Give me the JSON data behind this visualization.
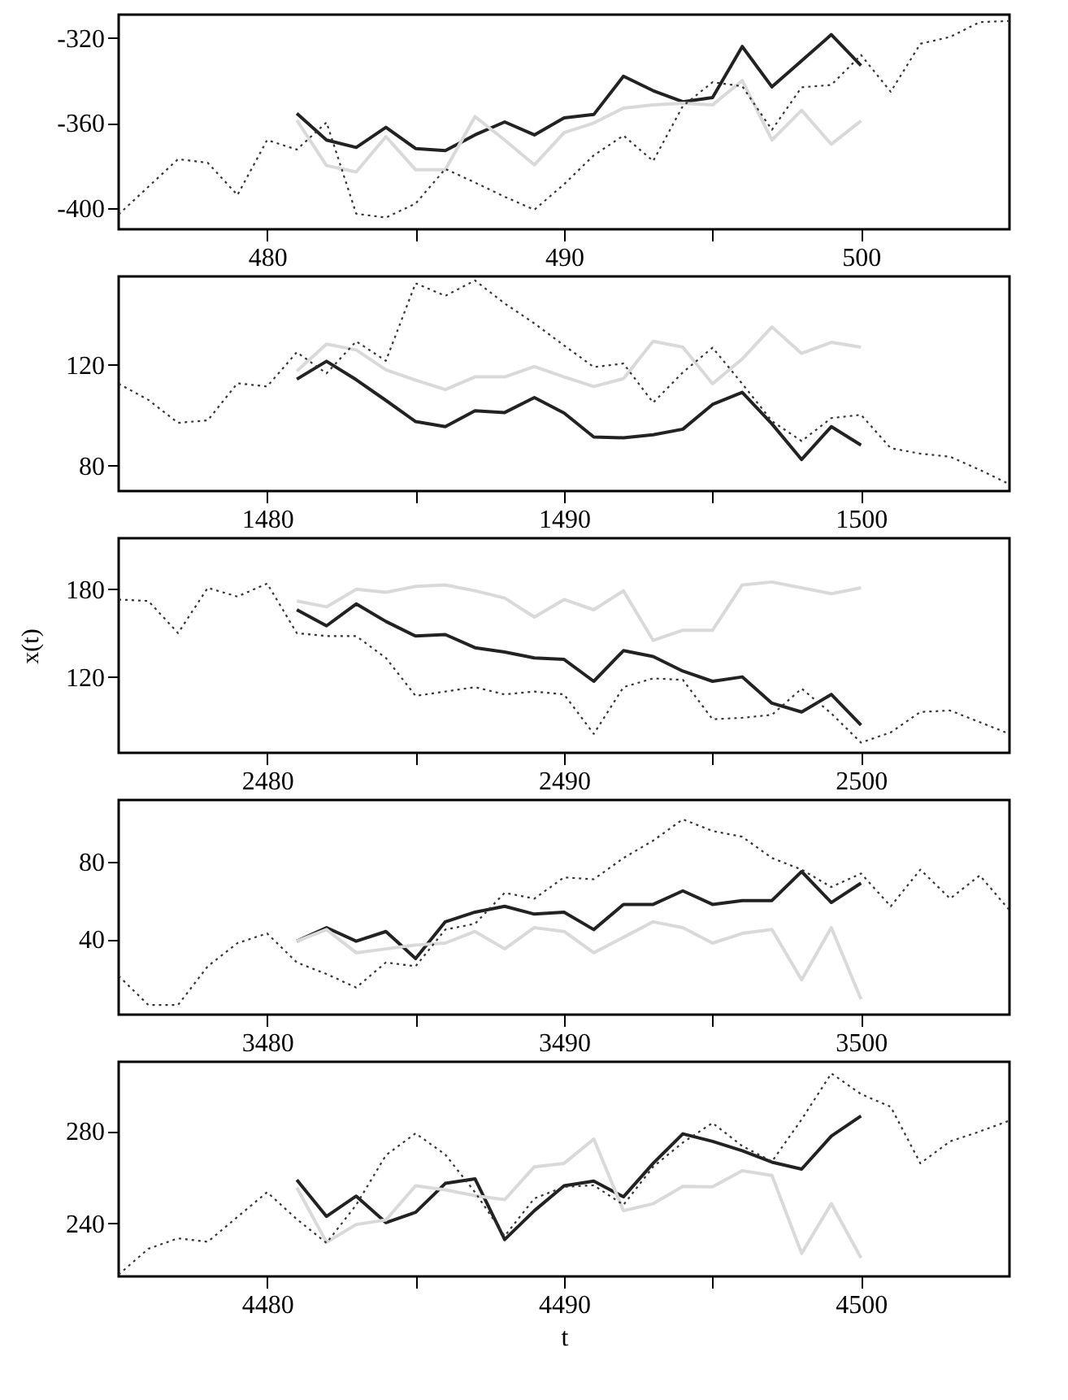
{
  "chart_data": [
    {
      "type": "line",
      "xlim": [
        475,
        505
      ],
      "xticks": [
        480,
        {
          "value": 485,
          "label": null
        },
        490,
        {
          "value": 495,
          "label": null
        },
        500
      ],
      "ylim": [
        -410,
        -309
      ],
      "yticks": [
        -400,
        -360,
        -320
      ],
      "series": [
        {
          "color": "#222222",
          "line_style": "solid",
          "x": [
            481,
            482,
            483,
            484,
            485,
            486,
            487,
            488,
            489,
            490,
            491,
            492,
            493,
            494,
            495,
            496,
            497,
            498,
            499,
            500
          ],
          "values": [
            -355.5,
            -368,
            -371.5,
            -362,
            -372,
            -373,
            -365.6,
            -359.5,
            -365.6,
            -357.6,
            -356,
            -338,
            -344.8,
            -350,
            -348,
            -324,
            -343,
            -330.7,
            -318.4,
            -333
          ]
        },
        {
          "color": "#d9d9d9",
          "line_style": "solid",
          "x": [
            481,
            482,
            483,
            484,
            485,
            486,
            487,
            488,
            489,
            490,
            491,
            492,
            493,
            494,
            495,
            496,
            497,
            498,
            499,
            500
          ],
          "values": [
            -358.7,
            -380,
            -383,
            -366.4,
            -382,
            -382,
            -357,
            -368,
            -379.7,
            -364.5,
            -360,
            -353,
            -351.5,
            -350.7,
            -351.5,
            -340,
            -368,
            -354,
            -370,
            -359
          ]
        },
        {
          "color": "#333333",
          "line_style": "dotted",
          "x": [
            475,
            476,
            477,
            478,
            479,
            480,
            481,
            482,
            483,
            484,
            485,
            486,
            487,
            488,
            489,
            490,
            491,
            492,
            493,
            494,
            495,
            496,
            497,
            498,
            499,
            500,
            501,
            502,
            503,
            504,
            505
          ],
          "values": [
            -403,
            -390,
            -377,
            -378.7,
            -393.9,
            -368,
            -372.5,
            -359.7,
            -402.7,
            -404.5,
            -397.9,
            -381.6,
            -388,
            -394.7,
            -400.8,
            -388.8,
            -375.2,
            -365.9,
            -377.9,
            -352,
            -340.8,
            -342.7,
            -363.2,
            -343.2,
            -342.1,
            -328,
            -345.3,
            -322.7,
            -319.5,
            -312.5,
            -312
          ]
        }
      ]
    },
    {
      "type": "line",
      "xlim": [
        1475,
        1505
      ],
      "xticks": [
        1480,
        {
          "value": 1485,
          "label": null
        },
        1490,
        {
          "value": 1495,
          "label": null
        },
        1500
      ],
      "ylim": [
        70,
        155
      ],
      "yticks": [
        80,
        120
      ],
      "series": [
        {
          "color": "#222222",
          "line_style": "solid",
          "x": [
            1481,
            1482,
            1483,
            1484,
            1485,
            1486,
            1487,
            1488,
            1489,
            1490,
            1491,
            1492,
            1493,
            1494,
            1495,
            1496,
            1497,
            1498,
            1499,
            1500
          ],
          "values": [
            114.3,
            121.4,
            114.1,
            105.9,
            97.5,
            95.5,
            101.8,
            101.1,
            107,
            100.9,
            91.4,
            91.1,
            92.3,
            94.5,
            104.3,
            109.1,
            96.6,
            82.5,
            95.5,
            88.2
          ]
        },
        {
          "color": "#d9d9d9",
          "line_style": "solid",
          "x": [
            1481,
            1482,
            1483,
            1484,
            1485,
            1486,
            1487,
            1488,
            1489,
            1490,
            1491,
            1492,
            1493,
            1494,
            1495,
            1496,
            1497,
            1498,
            1499,
            1500
          ],
          "values": [
            117.5,
            128.2,
            125.9,
            118,
            113.9,
            110.2,
            115.2,
            115.2,
            119.3,
            115.2,
            111.4,
            114.5,
            129.3,
            127,
            112.5,
            122.3,
            135,
            124.5,
            128.9,
            127
          ]
        },
        {
          "color": "#333333",
          "line_style": "dotted",
          "x": [
            1475,
            1476,
            1477,
            1478,
            1479,
            1480,
            1481,
            1482,
            1483,
            1484,
            1485,
            1486,
            1487,
            1488,
            1489,
            1490,
            1491,
            1492,
            1493,
            1494,
            1495,
            1496,
            1497,
            1498,
            1499,
            1500,
            1501,
            1502,
            1503,
            1504,
            1505
          ],
          "values": [
            112.5,
            106.1,
            97,
            98,
            112.7,
            111.4,
            125,
            116.6,
            129.3,
            121.6,
            152.3,
            147.3,
            153.4,
            144.3,
            136.4,
            127.7,
            119.1,
            120.5,
            105,
            117,
            126.8,
            112.5,
            97.7,
            89.8,
            98.9,
            100.2,
            87,
            84.8,
            83.6,
            78.4,
            72.7
          ]
        }
      ]
    },
    {
      "type": "line",
      "ylabel": "x(t)",
      "xlim": [
        2475,
        2505
      ],
      "xticks": [
        2480,
        {
          "value": 2485,
          "label": null
        },
        2490,
        {
          "value": 2495,
          "label": null
        },
        2500
      ],
      "ylim": [
        68,
        215
      ],
      "yticks": [
        120,
        180
      ],
      "series": [
        {
          "color": "#222222",
          "line_style": "solid",
          "x": [
            2481,
            2482,
            2483,
            2484,
            2485,
            2486,
            2487,
            2488,
            2489,
            2490,
            2491,
            2492,
            2493,
            2494,
            2495,
            2496,
            2497,
            2498,
            2499,
            2500
          ],
          "values": [
            166,
            155,
            170,
            158,
            148,
            149,
            140,
            137,
            133,
            132,
            117,
            138,
            134,
            124,
            117,
            120,
            102,
            96,
            108,
            87
          ]
        },
        {
          "color": "#d9d9d9",
          "line_style": "solid",
          "x": [
            2481,
            2482,
            2483,
            2484,
            2485,
            2486,
            2487,
            2488,
            2489,
            2490,
            2491,
            2492,
            2493,
            2494,
            2495,
            2496,
            2497,
            2498,
            2499,
            2500
          ],
          "values": [
            172,
            168,
            180,
            178,
            182,
            183,
            179,
            174,
            161,
            173,
            166,
            179,
            145,
            152,
            152,
            183,
            185,
            181,
            177,
            181
          ]
        },
        {
          "color": "#333333",
          "line_style": "dotted",
          "x": [
            2475,
            2476,
            2477,
            2478,
            2479,
            2480,
            2481,
            2482,
            2483,
            2484,
            2485,
            2486,
            2487,
            2488,
            2489,
            2490,
            2491,
            2492,
            2493,
            2494,
            2495,
            2496,
            2497,
            2498,
            2499,
            2500,
            2501,
            2502,
            2503,
            2504,
            2505
          ],
          "values": [
            173,
            172,
            150,
            181,
            175,
            184,
            150,
            148,
            148,
            133,
            107,
            110,
            113,
            108,
            110,
            108,
            81,
            113,
            119,
            118,
            91,
            92,
            94,
            112,
            95,
            75,
            82,
            96,
            97,
            89,
            81
          ]
        }
      ]
    },
    {
      "type": "line",
      "xlim": [
        3475,
        3505
      ],
      "xticks": [
        3480,
        {
          "value": 3485,
          "label": null
        },
        3490,
        {
          "value": 3495,
          "label": null
        },
        3500
      ],
      "ylim": [
        1,
        112
      ],
      "yticks": [
        40,
        80
      ],
      "series": [
        {
          "color": "#222222",
          "line_style": "solid",
          "x": [
            3481,
            3482,
            3483,
            3484,
            3485,
            3486,
            3487,
            3488,
            3489,
            3490,
            3491,
            3492,
            3493,
            3494,
            3495,
            3496,
            3497,
            3498,
            3499,
            3500
          ],
          "values": [
            39,
            46,
            39,
            44,
            30,
            49,
            54,
            57,
            53,
            54,
            45,
            58,
            58,
            65,
            58,
            60,
            60,
            75,
            59,
            69
          ]
        },
        {
          "color": "#d9d9d9",
          "line_style": "solid",
          "x": [
            3481,
            3482,
            3483,
            3484,
            3485,
            3486,
            3487,
            3488,
            3489,
            3490,
            3491,
            3492,
            3493,
            3494,
            3495,
            3496,
            3497,
            3498,
            3499,
            3500
          ],
          "values": [
            39,
            45,
            33,
            35,
            37,
            38,
            44,
            35,
            46,
            44,
            33,
            41,
            49,
            46,
            38,
            43,
            45,
            19,
            46,
            9
          ]
        },
        {
          "color": "#333333",
          "line_style": "dotted",
          "x": [
            3475,
            3476,
            3477,
            3478,
            3479,
            3480,
            3481,
            3482,
            3483,
            3484,
            3485,
            3486,
            3487,
            3488,
            3489,
            3490,
            3491,
            3492,
            3493,
            3494,
            3495,
            3496,
            3497,
            3498,
            3499,
            3500,
            3501,
            3502,
            3503,
            3504,
            3505
          ],
          "values": [
            21,
            6,
            6,
            26,
            38,
            43,
            28,
            22,
            15,
            28,
            26,
            45,
            48,
            64,
            61,
            72,
            71,
            82,
            91,
            102,
            96,
            93,
            82,
            76,
            67,
            74,
            57,
            76,
            61,
            73,
            55
          ]
        }
      ]
    },
    {
      "type": "line",
      "xlabel": "t",
      "xlim": [
        4475,
        4505
      ],
      "xticks": [
        4480,
        {
          "value": 4485,
          "label": null
        },
        4490,
        {
          "value": 4495,
          "label": null
        },
        4500
      ],
      "ylim": [
        217,
        310
      ],
      "yticks": [
        240,
        280
      ],
      "series": [
        {
          "color": "#222222",
          "line_style": "solid",
          "x": [
            4481,
            4482,
            4483,
            4484,
            4485,
            4486,
            4487,
            4488,
            4489,
            4490,
            4491,
            4492,
            4493,
            4494,
            4495,
            4496,
            4497,
            4498,
            4499,
            4500
          ],
          "values": [
            258.8,
            243,
            251.8,
            240.3,
            244.8,
            257.3,
            259.3,
            233,
            245.5,
            256.3,
            258.3,
            251.5,
            266,
            278.8,
            275.5,
            271.5,
            266.5,
            263.5,
            277.8,
            286.5
          ]
        },
        {
          "color": "#d9d9d9",
          "line_style": "solid",
          "x": [
            4481,
            4482,
            4483,
            4484,
            4485,
            4486,
            4487,
            4488,
            4489,
            4490,
            4491,
            4492,
            4493,
            4494,
            4495,
            4496,
            4497,
            4498,
            4499,
            4500
          ],
          "values": [
            255.5,
            231.8,
            239.5,
            241.5,
            256.3,
            254.5,
            252,
            250.3,
            264.5,
            266,
            276.5,
            245.5,
            248.5,
            256,
            255.8,
            262.8,
            260.8,
            227,
            248.5,
            225
          ]
        },
        {
          "color": "#333333",
          "line_style": "dotted",
          "x": [
            4475,
            4476,
            4477,
            4478,
            4479,
            4480,
            4481,
            4482,
            4483,
            4484,
            4485,
            4486,
            4487,
            4488,
            4489,
            4490,
            4491,
            4492,
            4493,
            4494,
            4495,
            4496,
            4497,
            4498,
            4499,
            4500,
            4501,
            4502,
            4503,
            4504,
            4505
          ],
          "values": [
            217.8,
            229,
            233.5,
            232,
            242.8,
            253.5,
            241.8,
            231.5,
            248,
            269.5,
            279,
            269.8,
            253.5,
            234.5,
            250.8,
            255.8,
            256.5,
            248,
            264.5,
            275,
            283.5,
            273.5,
            266.8,
            285,
            305,
            296,
            290.5,
            266,
            275.5,
            279.8,
            284.5
          ]
        }
      ]
    }
  ]
}
